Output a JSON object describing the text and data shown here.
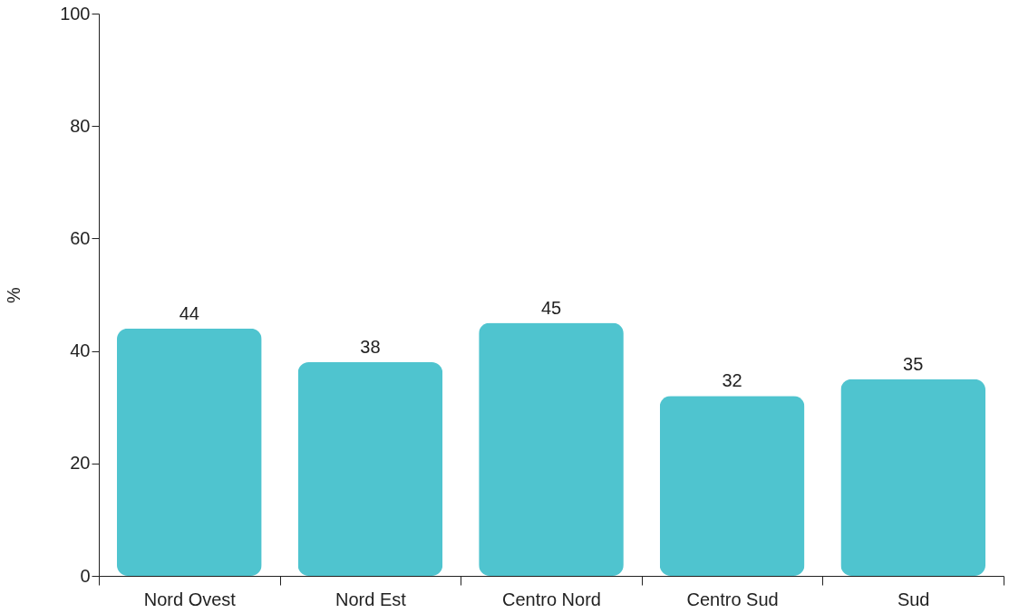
{
  "chart_data": {
    "type": "bar",
    "ylabel": "%",
    "categories": [
      "Nord Ovest",
      "Nord Est",
      "Centro Nord",
      "Centro Sud",
      "Sud"
    ],
    "values": [
      44,
      38,
      45,
      32,
      35
    ],
    "color": "#4fc4cf",
    "ylim": [
      0,
      100
    ],
    "yticks": [
      0,
      20,
      40,
      60,
      80,
      100
    ],
    "data_labels": true,
    "grid": false
  }
}
